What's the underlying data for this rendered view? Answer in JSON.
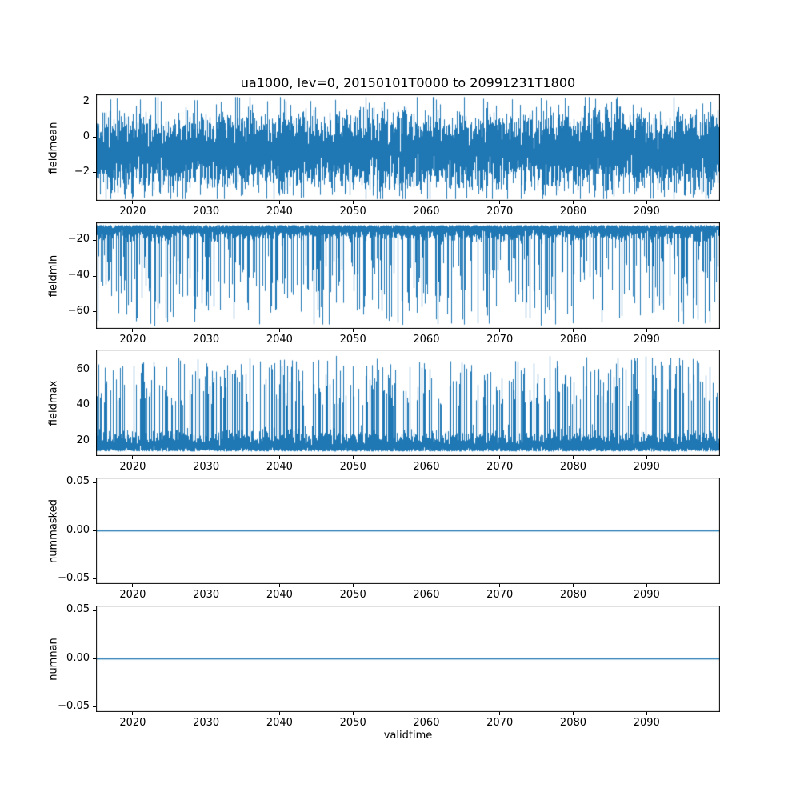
{
  "figure": {
    "title": "ua1000, lev=0, 20150101T0000 to 20991231T1800",
    "xlabel": "validtime",
    "background": "#ffffff",
    "line_color": "#1f77b4",
    "frame_color": "#000000",
    "xlim": [
      2015,
      2100
    ],
    "xticks": [
      {
        "v": 2020,
        "label": "2020"
      },
      {
        "v": 2030,
        "label": "2030"
      },
      {
        "v": 2040,
        "label": "2040"
      },
      {
        "v": 2050,
        "label": "2050"
      },
      {
        "v": 2060,
        "label": "2060"
      },
      {
        "v": 2070,
        "label": "2070"
      },
      {
        "v": 2080,
        "label": "2080"
      },
      {
        "v": 2090,
        "label": "2090"
      }
    ]
  },
  "chart_data": [
    {
      "type": "line",
      "name": "fieldmean",
      "ylabel": "fieldmean",
      "ylim": [
        -3.6,
        2.45
      ],
      "yticks": [
        {
          "v": 2,
          "label": "2"
        },
        {
          "v": 0,
          "label": "0"
        },
        {
          "v": -2,
          "label": "−2"
        }
      ],
      "series": {
        "kind": "noise-band",
        "center": -0.75,
        "spread": 1.05,
        "min": -3.5,
        "max": 2.3
      }
    },
    {
      "type": "line",
      "name": "fieldmin",
      "ylabel": "fieldmin",
      "ylim": [
        -69.5,
        -10
      ],
      "yticks": [
        {
          "v": -20,
          "label": "−20"
        },
        {
          "v": -40,
          "label": "−40"
        },
        {
          "v": -60,
          "label": "−60"
        }
      ],
      "series": {
        "kind": "band-spikes",
        "base": -11.5,
        "band_spread": 3.5,
        "direction": -1,
        "spike_prob": 0.4,
        "spike_near": -28,
        "spike_far": -68
      }
    },
    {
      "type": "line",
      "name": "fieldmax",
      "ylabel": "fieldmax",
      "ylim": [
        12,
        71.5
      ],
      "yticks": [
        {
          "v": 60,
          "label": "60"
        },
        {
          "v": 40,
          "label": "40"
        },
        {
          "v": 20,
          "label": "20"
        }
      ],
      "series": {
        "kind": "band-spikes",
        "base": 14.5,
        "band_spread": 4.5,
        "direction": 1,
        "spike_prob": 0.4,
        "spike_near": 40,
        "spike_far": 68
      }
    },
    {
      "type": "line",
      "name": "nummasked",
      "ylabel": "nummasked",
      "ylim": [
        -0.055,
        0.055
      ],
      "yticks": [
        {
          "v": 0.05,
          "label": "0.05"
        },
        {
          "v": 0,
          "label": "0.00"
        },
        {
          "v": -0.05,
          "label": "−0.05"
        }
      ],
      "series": {
        "kind": "constant",
        "value": 0
      }
    },
    {
      "type": "line",
      "name": "numnan",
      "ylabel": "numnan",
      "ylim": [
        -0.055,
        0.055
      ],
      "yticks": [
        {
          "v": 0.05,
          "label": "0.05"
        },
        {
          "v": 0,
          "label": "0.00"
        },
        {
          "v": -0.05,
          "label": "−0.05"
        }
      ],
      "series": {
        "kind": "constant",
        "value": 0
      }
    }
  ]
}
